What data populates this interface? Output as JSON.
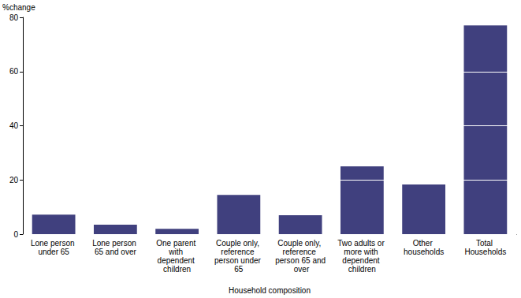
{
  "chart_data": {
    "type": "bar",
    "x_label": "Household composition",
    "y_label": "%change",
    "categories": [
      "Lone person under 65",
      "Lone person 65 and over",
      "One parent with dependent children",
      "Couple only, reference person under 65",
      "Couple only, reference person 65 and over",
      "Two adults or more with dependent children",
      "Other households",
      "Total Households"
    ],
    "values": [
      7.2,
      3.5,
      2.0,
      14.5,
      7.0,
      25.0,
      18.3,
      77.0
    ],
    "color": "#40407e",
    "ylim": [
      0,
      80
    ],
    "yticks": [
      0,
      20,
      40,
      60,
      80
    ],
    "grid": true
  }
}
